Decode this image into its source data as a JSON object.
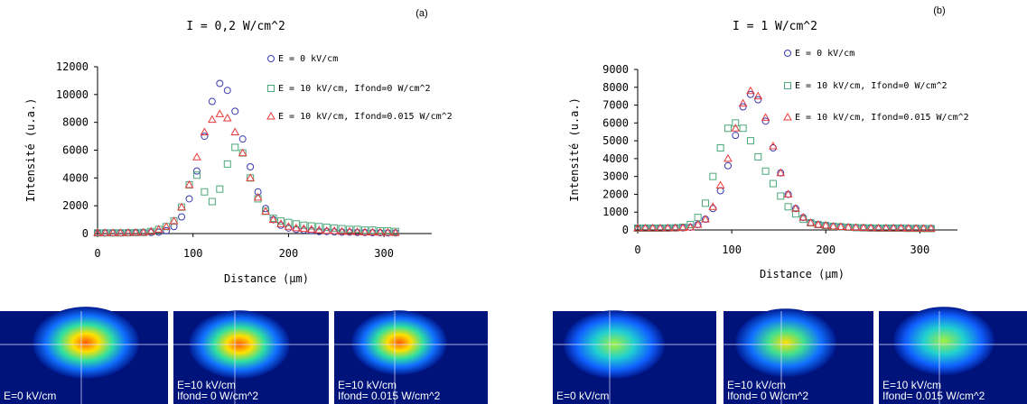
{
  "chart_data": [
    {
      "type": "scatter",
      "title": "I = 0,2 W/cm^2",
      "panel": "(a)",
      "xlabel": "Distance (μm)",
      "ylabel": "Intensité (u.a.)",
      "xlim": [
        0,
        350
      ],
      "xticks": [
        0,
        100,
        200,
        300
      ],
      "ylim": [
        0,
        12000
      ],
      "yticks": [
        0,
        2000,
        4000,
        6000,
        8000,
        10000,
        12000
      ],
      "x": [
        0,
        8,
        16,
        24,
        32,
        40,
        48,
        56,
        64,
        72,
        80,
        88,
        96,
        104,
        112,
        120,
        128,
        136,
        144,
        152,
        160,
        168,
        176,
        184,
        192,
        200,
        208,
        216,
        224,
        232,
        240,
        248,
        256,
        264,
        272,
        280,
        288,
        296,
        304,
        312
      ],
      "series": [
        {
          "name": "E = 0 kV/cm",
          "color": "#3b3bb0",
          "marker": "circle",
          "values": [
            50,
            50,
            50,
            50,
            60,
            60,
            70,
            80,
            100,
            200,
            500,
            1200,
            2500,
            4500,
            7000,
            9500,
            10800,
            10300,
            8800,
            6800,
            4800,
            3000,
            1800,
            1000,
            600,
            400,
            300,
            250,
            200,
            150,
            150,
            120,
            100,
            100,
            80,
            80,
            60,
            60,
            50,
            50
          ]
        },
        {
          "name": "E = 10 kV/cm, Ifond=0 W/cm^2",
          "color": "#4aa878",
          "marker": "square",
          "values": [
            50,
            50,
            50,
            50,
            60,
            70,
            80,
            150,
            300,
            500,
            900,
            1900,
            3500,
            4200,
            3000,
            2300,
            3200,
            5000,
            6200,
            5800,
            4000,
            2500,
            1600,
            1100,
            900,
            800,
            700,
            600,
            550,
            500,
            450,
            400,
            350,
            300,
            300,
            250,
            250,
            200,
            200,
            150
          ]
        },
        {
          "name": "E = 10 kV/cm, Ifond=0.015 W/cm^2",
          "color": "#e83a3a",
          "marker": "triangle",
          "values": [
            50,
            50,
            50,
            50,
            60,
            70,
            80,
            150,
            300,
            500,
            900,
            1900,
            3500,
            5500,
            7300,
            8200,
            8600,
            8300,
            7300,
            5800,
            4000,
            2600,
            1600,
            1000,
            700,
            500,
            400,
            350,
            300,
            250,
            200,
            200,
            150,
            150,
            120,
            100,
            100,
            80,
            80,
            60
          ]
        }
      ]
    },
    {
      "type": "scatter",
      "title": "I = 1 W/cm^2",
      "panel": "(b)",
      "xlabel": "Distance (μm)",
      "ylabel": "Intensité (u.a.)",
      "xlim": [
        0,
        340
      ],
      "xticks": [
        0,
        100,
        200,
        300
      ],
      "ylim": [
        0,
        9000
      ],
      "yticks": [
        0,
        1000,
        2000,
        3000,
        4000,
        5000,
        6000,
        7000,
        8000,
        9000
      ],
      "x": [
        0,
        8,
        16,
        24,
        32,
        40,
        48,
        56,
        64,
        72,
        80,
        88,
        96,
        104,
        112,
        120,
        128,
        136,
        144,
        152,
        160,
        168,
        176,
        184,
        192,
        200,
        208,
        216,
        224,
        232,
        240,
        248,
        256,
        264,
        272,
        280,
        288,
        296,
        304,
        312
      ],
      "series": [
        {
          "name": "E = 0 kV/cm",
          "color": "#3b3bb0",
          "marker": "circle",
          "values": [
            100,
            100,
            100,
            100,
            100,
            110,
            120,
            150,
            300,
            600,
            1200,
            2200,
            3600,
            5300,
            6900,
            7600,
            7300,
            6100,
            4600,
            3200,
            2000,
            1200,
            700,
            400,
            300,
            250,
            200,
            180,
            150,
            130,
            120,
            110,
            100,
            100,
            100,
            100,
            90,
            90,
            80,
            80
          ]
        },
        {
          "name": "E = 10 kV/cm, Ifond=0 W/cm^2",
          "color": "#4aa878",
          "marker": "square",
          "values": [
            100,
            100,
            100,
            100,
            110,
            120,
            150,
            300,
            700,
            1500,
            3000,
            4600,
            5700,
            6000,
            5700,
            5000,
            4100,
            3300,
            2600,
            1900,
            1300,
            900,
            600,
            400,
            300,
            250,
            200,
            180,
            150,
            130,
            120,
            110,
            100,
            100,
            100,
            100,
            90,
            90,
            80,
            80
          ]
        },
        {
          "name": "E = 10 kV/cm, Ifond=0.015 W/cm^2",
          "color": "#e83a3a",
          "marker": "triangle",
          "values": [
            100,
            100,
            100,
            100,
            100,
            110,
            120,
            150,
            300,
            600,
            1300,
            2500,
            4000,
            5700,
            7100,
            7800,
            7500,
            6300,
            4700,
            3200,
            2000,
            1200,
            700,
            400,
            300,
            250,
            200,
            180,
            150,
            130,
            120,
            110,
            100,
            100,
            100,
            100,
            90,
            90,
            80,
            80
          ]
        }
      ]
    }
  ],
  "images": [
    {
      "lines": [
        "E=0 kV/cm"
      ]
    },
    {
      "lines": [
        "E=10 kV/cm",
        "Ifond= 0 W/cm^2"
      ]
    },
    {
      "lines": [
        "E=10 kV/cm",
        "Ifond= 0.015 W/cm^2"
      ]
    },
    {
      "lines": [
        "E=0 kV/cm"
      ]
    },
    {
      "lines": [
        "E=10 kV/cm",
        "Ifond= 0 W/cm^2"
      ]
    },
    {
      "lines": [
        "E=10 kV/cm",
        "Ifond= 0.015 W/cm^2"
      ]
    }
  ]
}
